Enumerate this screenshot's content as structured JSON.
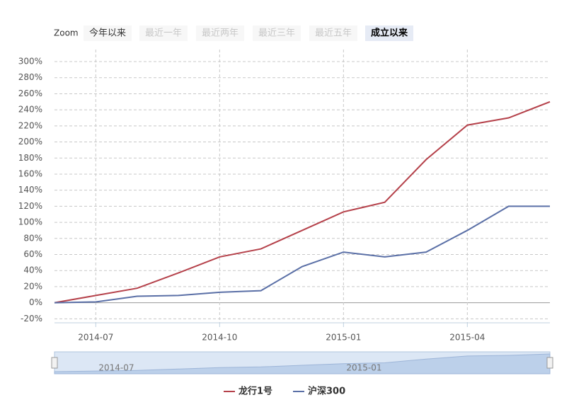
{
  "zoom": {
    "label": "Zoom",
    "buttons": [
      "今年以来",
      "最近一年",
      "最近两年",
      "最近三年",
      "最近五年",
      "成立以来"
    ],
    "disabled": [
      false,
      true,
      true,
      true,
      true,
      false
    ],
    "selected": 5
  },
  "chart_data": {
    "type": "line",
    "x": [
      "2014-06",
      "2014-07",
      "2014-08",
      "2014-09",
      "2014-10",
      "2014-11",
      "2014-12",
      "2015-01",
      "2015-02",
      "2015-03",
      "2015-04",
      "2015-05",
      "2015-06"
    ],
    "series": [
      {
        "name": "龙行1号",
        "color": "#b5414a",
        "values": [
          0,
          9,
          18,
          37,
          57,
          67,
          90,
          113,
          125,
          178,
          221,
          230,
          250
        ]
      },
      {
        "name": "沪深300",
        "color": "#5a6fa6",
        "values": [
          0,
          1,
          8,
          9,
          13,
          15,
          45,
          63,
          57,
          63,
          90,
          120,
          120
        ]
      }
    ],
    "xlim": [
      "2014-06",
      "2015-06"
    ],
    "xticks": [
      "2014-07",
      "2014-10",
      "2015-01",
      "2015-04"
    ],
    "ylim": [
      -25,
      315
    ],
    "yticks": [
      {
        "value": -20,
        "label": "-20%"
      },
      {
        "value": 0,
        "label": "0%"
      },
      {
        "value": 20,
        "label": "20%"
      },
      {
        "value": 40,
        "label": "40%"
      },
      {
        "value": 60,
        "label": "60%"
      },
      {
        "value": 80,
        "label": "80%"
      },
      {
        "value": 100,
        "label": "100%"
      },
      {
        "value": 120,
        "label": "120%"
      },
      {
        "value": 140,
        "label": "140%"
      },
      {
        "value": 160,
        "label": "160%"
      },
      {
        "value": 180,
        "label": "180%"
      },
      {
        "value": 200,
        "label": "200%"
      },
      {
        "value": 220,
        "label": "220%"
      },
      {
        "value": 240,
        "label": "240%"
      },
      {
        "value": 260,
        "label": "260%"
      },
      {
        "value": 280,
        "label": "280%"
      },
      {
        "value": 300,
        "label": "300%"
      }
    ],
    "grid": true
  }
}
